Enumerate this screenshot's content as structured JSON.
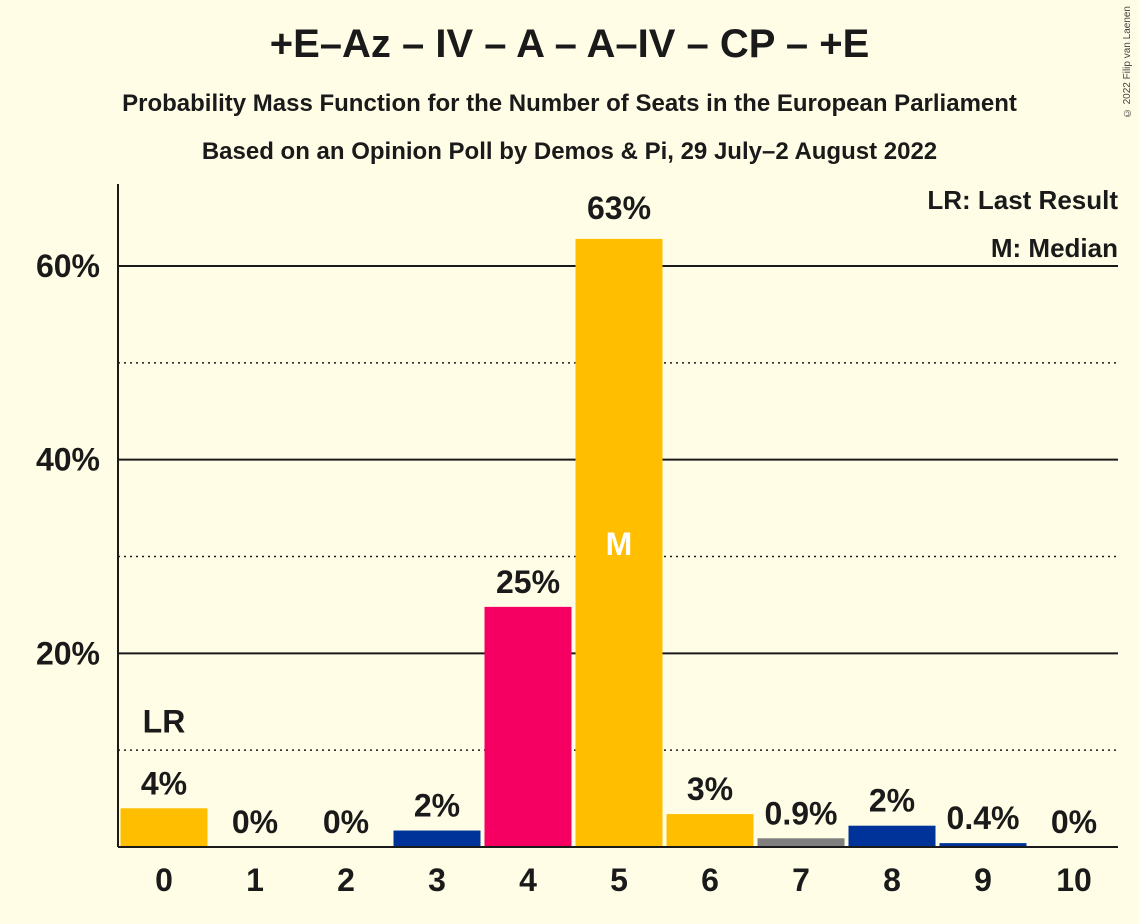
{
  "copyright": "© 2022 Filip van Laenen",
  "chart_data": {
    "type": "bar",
    "title": "+E–Az – IV – A – A–IV – CP – +E",
    "subtitle": "Probability Mass Function for the Number of Seats in the European Parliament",
    "subtitle2": "Based on an Opinion Poll by Demos & Pi, 29 July–2 August 2022",
    "categories": [
      "0",
      "1",
      "2",
      "3",
      "4",
      "5",
      "6",
      "7",
      "8",
      "9",
      "10"
    ],
    "values": [
      4,
      0,
      0,
      1.7,
      24.8,
      62.8,
      3.4,
      0.9,
      2.2,
      0.4,
      0
    ],
    "data_labels": [
      "4%",
      "0%",
      "0%",
      "2%",
      "25%",
      "63%",
      "3%",
      "0.9%",
      "2%",
      "0.4%",
      "0%"
    ],
    "bar_colors": [
      "#FFBF00",
      "#FFBF00",
      "#FFBF00",
      "#003399",
      "#F50062",
      "#FFBF00",
      "#FFBF00",
      "#7F7F7F",
      "#003399",
      "#003399",
      "#003399"
    ],
    "ylim": [
      0,
      68
    ],
    "yticks": [
      20,
      40,
      60
    ],
    "ytick_labels": [
      "20%",
      "40%",
      "60%"
    ],
    "minor_gridlines": [
      10,
      30,
      50
    ],
    "last_result_index": 0,
    "last_result_marker": "LR",
    "median_index": 5,
    "median_marker": "M",
    "legend": [
      "LR: Last Result",
      "M: Median"
    ],
    "legend_position": "top-right"
  }
}
